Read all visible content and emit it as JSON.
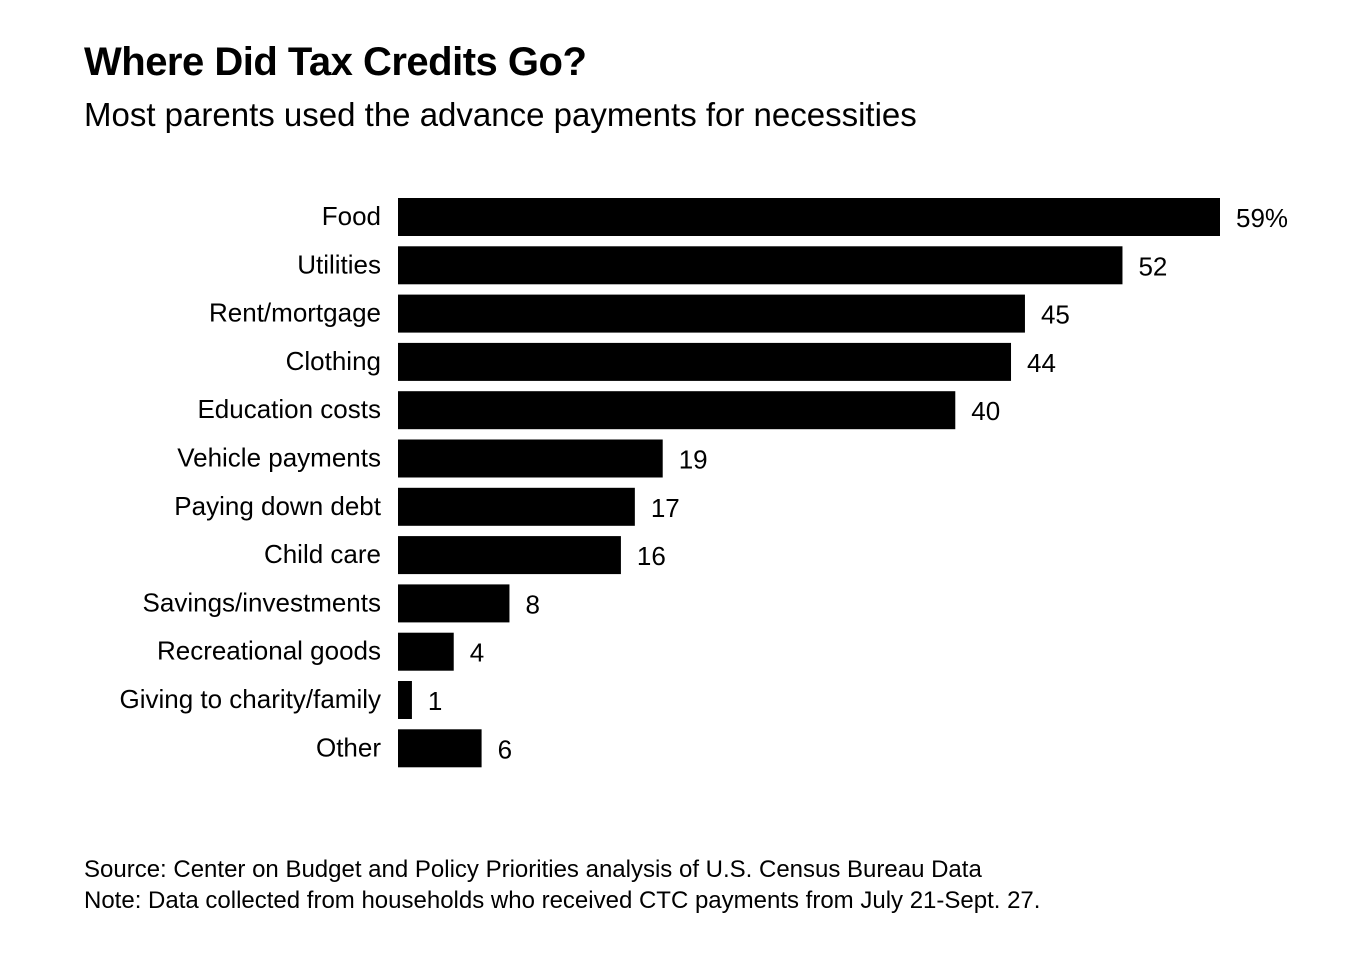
{
  "title": "Where Did Tax Credits Go?",
  "subtitle": "Most parents used the advance payments for necessities",
  "source": "Source: Center on Budget and Policy Priorities analysis of U.S. Census Bureau Data",
  "note": "Note: Data collected from households who received CTC payments from July 21-Sept. 27.",
  "colors": {
    "bar": "#000000",
    "text": "#000000",
    "background": "#ffffff"
  },
  "chart_data": {
    "type": "bar",
    "orientation": "horizontal",
    "title": "Where Did Tax Credits Go?",
    "subtitle": "Most parents used the advance payments for necessities",
    "categories": [
      "Food",
      "Utilities",
      "Rent/mortgage",
      "Clothing",
      "Education costs",
      "Vehicle payments",
      "Paying down debt",
      "Child care",
      "Savings/investments",
      "Recreational goods",
      "Giving to charity/family",
      "Other"
    ],
    "values": [
      59,
      52,
      45,
      44,
      40,
      19,
      17,
      16,
      8,
      4,
      1,
      6
    ],
    "value_labels": [
      "59%",
      "52",
      "45",
      "44",
      "40",
      "19",
      "17",
      "16",
      "8",
      "4",
      "1",
      "6"
    ],
    "unit": "%",
    "xlim": [
      0,
      59
    ],
    "grid": false,
    "legend": false
  }
}
